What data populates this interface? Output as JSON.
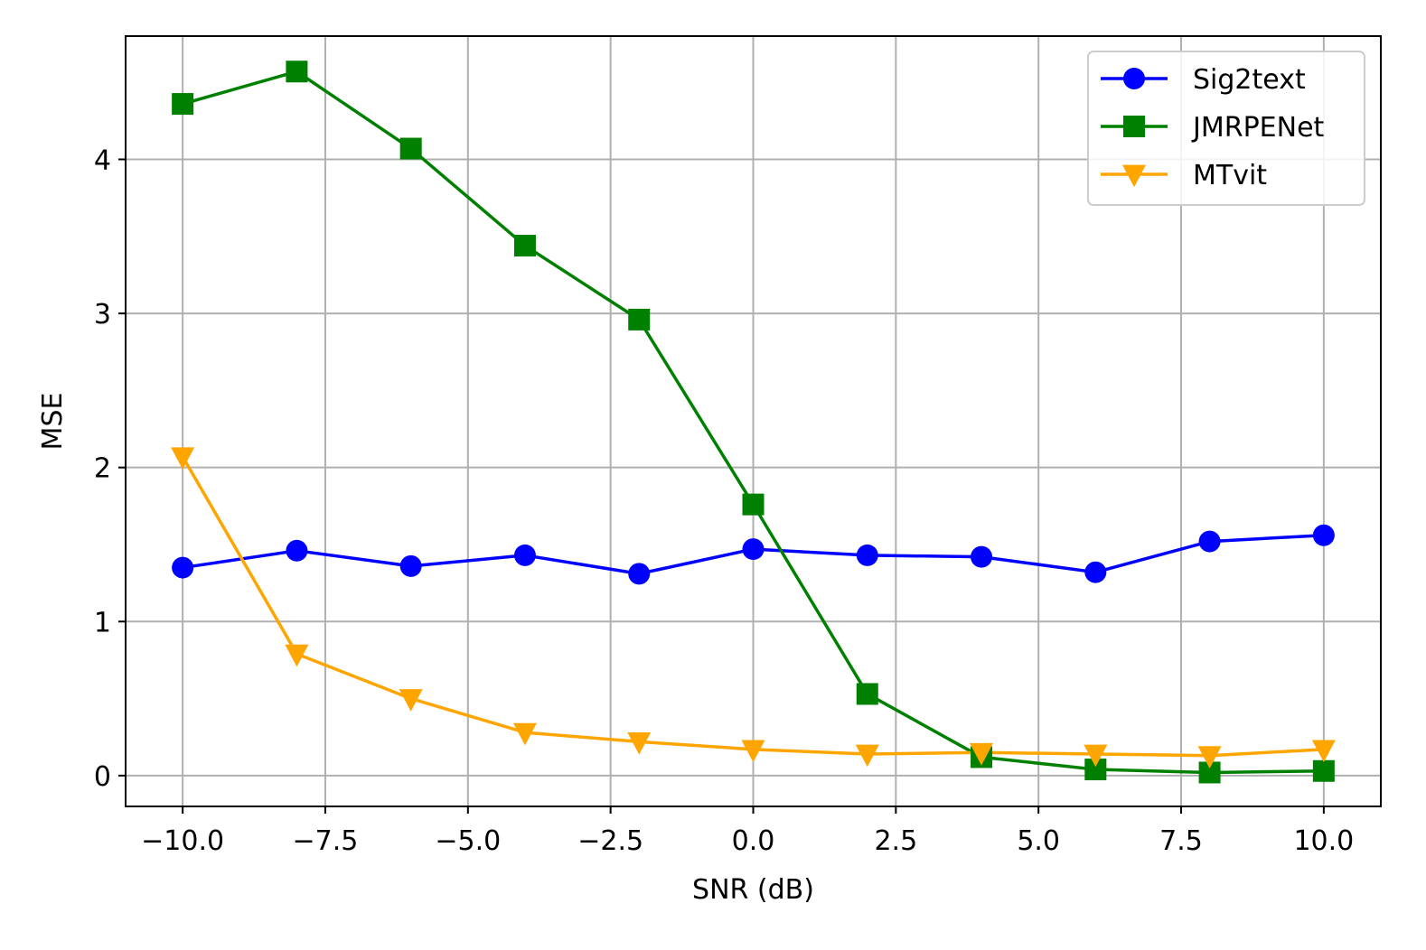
{
  "chart_data": {
    "type": "line",
    "title": "",
    "xlabel": "SNR (dB)",
    "ylabel": "MSE",
    "xlim": [
      -11.0,
      11.0
    ],
    "ylim": [
      -0.2,
      4.8
    ],
    "xticks": [
      -10.0,
      -7.5,
      -5.0,
      -2.5,
      0.0,
      2.5,
      5.0,
      7.5,
      10.0
    ],
    "xtick_labels": [
      "−10.0",
      "−7.5",
      "−5.0",
      "−2.5",
      "0.0",
      "2.5",
      "5.0",
      "7.5",
      "10.0"
    ],
    "yticks": [
      0,
      1,
      2,
      3,
      4
    ],
    "ytick_labels": [
      "0",
      "1",
      "2",
      "3",
      "4"
    ],
    "grid": true,
    "legend_position": "top-right",
    "x": [
      -10,
      -8,
      -6,
      -4,
      -2,
      0,
      2,
      4,
      6,
      8,
      10
    ],
    "series": [
      {
        "name": "Sig2text",
        "color": "#0000ff",
        "marker": "circle",
        "values": [
          1.35,
          1.46,
          1.36,
          1.43,
          1.31,
          1.47,
          1.43,
          1.42,
          1.32,
          1.52,
          1.56
        ]
      },
      {
        "name": "JMRPENet",
        "color": "#008000",
        "marker": "square",
        "values": [
          4.36,
          4.57,
          4.07,
          3.44,
          2.96,
          1.76,
          0.53,
          0.12,
          0.04,
          0.02,
          0.03
        ]
      },
      {
        "name": "MTvit",
        "color": "#ffa500",
        "marker": "triangle-down",
        "values": [
          2.07,
          0.79,
          0.5,
          0.28,
          0.22,
          0.17,
          0.14,
          0.15,
          0.14,
          0.13,
          0.17
        ]
      }
    ]
  }
}
